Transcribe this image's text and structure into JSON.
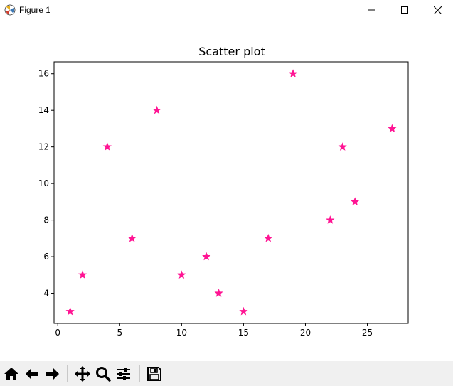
{
  "window": {
    "title": "Figure 1",
    "icon": "matplotlib-icon",
    "controls": [
      "minimize-icon",
      "maximize-icon",
      "close-icon"
    ]
  },
  "toolbar": {
    "buttons": [
      "home-icon",
      "back-arrow-icon",
      "forward-arrow-icon",
      "pan-icon",
      "zoom-icon",
      "configure-subplots-icon",
      "save-icon"
    ]
  },
  "chart_data": {
    "type": "scatter",
    "title": "Scatter plot",
    "xlabel": "",
    "ylabel": "",
    "marker": "star",
    "color": "#ff1493",
    "x": [
      1,
      2,
      4,
      6,
      8,
      10,
      12,
      13,
      15,
      17,
      19,
      22,
      23,
      24,
      27
    ],
    "y": [
      3,
      5,
      12,
      7,
      14,
      5,
      6,
      4,
      3,
      7,
      16,
      8,
      12,
      9,
      13
    ],
    "xlim": [
      -0.3,
      28.3
    ],
    "ylim": [
      2.35,
      16.65
    ],
    "xticks": [
      0,
      5,
      10,
      15,
      20,
      25
    ],
    "yticks": [
      4,
      6,
      8,
      10,
      12,
      14,
      16
    ],
    "grid": false
  }
}
